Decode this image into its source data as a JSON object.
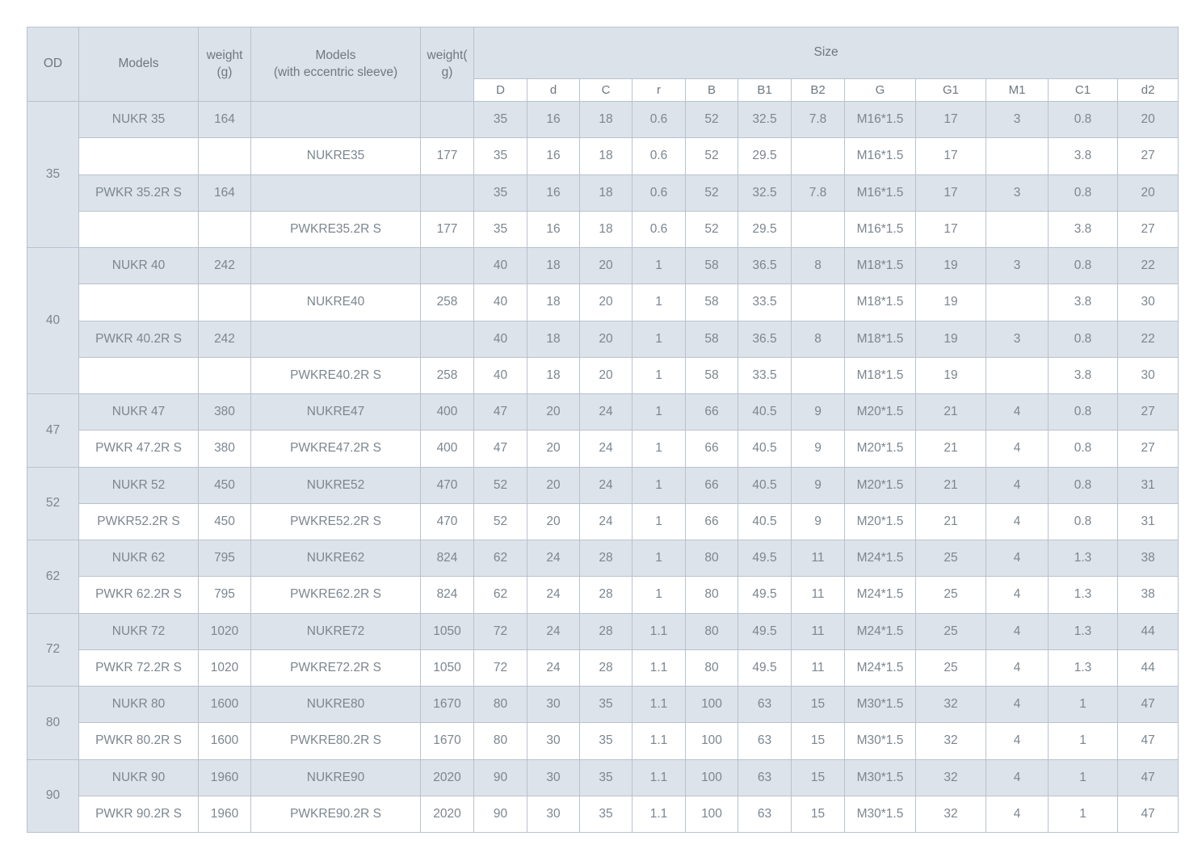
{
  "colors": {
    "shaded_cell": "#dde3ea",
    "white_cell": "#ffffff",
    "border": "#b8c2cd",
    "header_text": "#6e7781",
    "cell_text": "#7b8690"
  },
  "table": {
    "left_columns": [
      "OD",
      "Models",
      "weight\n(g)",
      "Models\n(with eccentric sleeve)",
      "weight(\ng)"
    ],
    "size_header": "Size",
    "size_columns": [
      "D",
      "d",
      "C",
      "r",
      "B",
      "B1",
      "B2",
      "G",
      "G1",
      "M1",
      "C1",
      "d2"
    ],
    "groups": [
      {
        "od": "35",
        "rows": [
          {
            "models": "NUKR 35",
            "weight": "164",
            "models_e": "",
            "weight_e": "",
            "size": [
              "35",
              "16",
              "18",
              "0.6",
              "52",
              "32.5",
              "7.8",
              "M16*1.5",
              "17",
              "3",
              "0.8",
              "20"
            ]
          },
          {
            "models": "",
            "weight": "",
            "models_e": "NUKRE35",
            "weight_e": "177",
            "size": [
              "35",
              "16",
              "18",
              "0.6",
              "52",
              "29.5",
              "",
              "M16*1.5",
              "17",
              "",
              "3.8",
              "27"
            ]
          },
          {
            "models": "PWKR 35.2R S",
            "weight": "164",
            "models_e": "",
            "weight_e": "",
            "size": [
              "35",
              "16",
              "18",
              "0.6",
              "52",
              "32.5",
              "7.8",
              "M16*1.5",
              "17",
              "3",
              "0.8",
              "20"
            ]
          },
          {
            "models": "",
            "weight": "",
            "models_e": "PWKRE35.2R S",
            "weight_e": "177",
            "size": [
              "35",
              "16",
              "18",
              "0.6",
              "52",
              "29.5",
              "",
              "M16*1.5",
              "17",
              "",
              "3.8",
              "27"
            ]
          }
        ]
      },
      {
        "od": "40",
        "rows": [
          {
            "models": "NUKR 40",
            "weight": "242",
            "models_e": "",
            "weight_e": "",
            "size": [
              "40",
              "18",
              "20",
              "1",
              "58",
              "36.5",
              "8",
              "M18*1.5",
              "19",
              "3",
              "0.8",
              "22"
            ]
          },
          {
            "models": "",
            "weight": "",
            "models_e": "NUKRE40",
            "weight_e": "258",
            "size": [
              "40",
              "18",
              "20",
              "1",
              "58",
              "33.5",
              "",
              "M18*1.5",
              "19",
              "",
              "3.8",
              "30"
            ]
          },
          {
            "models": "PWKR 40.2R S",
            "weight": "242",
            "models_e": "",
            "weight_e": "",
            "size": [
              "40",
              "18",
              "20",
              "1",
              "58",
              "36.5",
              "8",
              "M18*1.5",
              "19",
              "3",
              "0.8",
              "22"
            ]
          },
          {
            "models": "",
            "weight": "",
            "models_e": "PWKRE40.2R S",
            "weight_e": "258",
            "size": [
              "40",
              "18",
              "20",
              "1",
              "58",
              "33.5",
              "",
              "M18*1.5",
              "19",
              "",
              "3.8",
              "30"
            ]
          }
        ]
      },
      {
        "od": "47",
        "rows": [
          {
            "models": "NUKR 47",
            "weight": "380",
            "models_e": "NUKRE47",
            "weight_e": "400",
            "size": [
              "47",
              "20",
              "24",
              "1",
              "66",
              "40.5",
              "9",
              "M20*1.5",
              "21",
              "4",
              "0.8",
              "27"
            ]
          },
          {
            "models": "PWKR 47.2R S",
            "weight": "380",
            "models_e": "PWKRE47.2R S",
            "weight_e": "400",
            "size": [
              "47",
              "20",
              "24",
              "1",
              "66",
              "40.5",
              "9",
              "M20*1.5",
              "21",
              "4",
              "0.8",
              "27"
            ]
          }
        ]
      },
      {
        "od": "52",
        "rows": [
          {
            "models": "NUKR 52",
            "weight": "450",
            "models_e": "NUKRE52",
            "weight_e": "470",
            "size": [
              "52",
              "20",
              "24",
              "1",
              "66",
              "40.5",
              "9",
              "M20*1.5",
              "21",
              "4",
              "0.8",
              "31"
            ]
          },
          {
            "models": "PWKR52.2R S",
            "weight": "450",
            "models_e": "PWKRE52.2R S",
            "weight_e": "470",
            "size": [
              "52",
              "20",
              "24",
              "1",
              "66",
              "40.5",
              "9",
              "M20*1.5",
              "21",
              "4",
              "0.8",
              "31"
            ]
          }
        ]
      },
      {
        "od": "62",
        "rows": [
          {
            "models": "NUKR 62",
            "weight": "795",
            "models_e": "NUKRE62",
            "weight_e": "824",
            "size": [
              "62",
              "24",
              "28",
              "1",
              "80",
              "49.5",
              "11",
              "M24*1.5",
              "25",
              "4",
              "1.3",
              "38"
            ]
          },
          {
            "models": "PWKR 62.2R S",
            "weight": "795",
            "models_e": "PWKRE62.2R S",
            "weight_e": "824",
            "size": [
              "62",
              "24",
              "28",
              "1",
              "80",
              "49.5",
              "11",
              "M24*1.5",
              "25",
              "4",
              "1.3",
              "38"
            ]
          }
        ]
      },
      {
        "od": "72",
        "rows": [
          {
            "models": "NUKR 72",
            "weight": "1020",
            "models_e": "NUKRE72",
            "weight_e": "1050",
            "size": [
              "72",
              "24",
              "28",
              "1.1",
              "80",
              "49.5",
              "11",
              "M24*1.5",
              "25",
              "4",
              "1.3",
              "44"
            ]
          },
          {
            "models": "PWKR 72.2R S",
            "weight": "1020",
            "models_e": "PWKRE72.2R S",
            "weight_e": "1050",
            "size": [
              "72",
              "24",
              "28",
              "1.1",
              "80",
              "49.5",
              "11",
              "M24*1.5",
              "25",
              "4",
              "1.3",
              "44"
            ]
          }
        ]
      },
      {
        "od": "80",
        "rows": [
          {
            "models": "NUKR 80",
            "weight": "1600",
            "models_e": "NUKRE80",
            "weight_e": "1670",
            "size": [
              "80",
              "30",
              "35",
              "1.1",
              "100",
              "63",
              "15",
              "M30*1.5",
              "32",
              "4",
              "1",
              "47"
            ]
          },
          {
            "models": "PWKR 80.2R S",
            "weight": "1600",
            "models_e": "PWKRE80.2R S",
            "weight_e": "1670",
            "size": [
              "80",
              "30",
              "35",
              "1.1",
              "100",
              "63",
              "15",
              "M30*1.5",
              "32",
              "4",
              "1",
              "47"
            ]
          }
        ]
      },
      {
        "od": "90",
        "rows": [
          {
            "models": "NUKR 90",
            "weight": "1960",
            "models_e": "NUKRE90",
            "weight_e": "2020",
            "size": [
              "90",
              "30",
              "35",
              "1.1",
              "100",
              "63",
              "15",
              "M30*1.5",
              "32",
              "4",
              "1",
              "47"
            ]
          },
          {
            "models": "PWKR 90.2R S",
            "weight": "1960",
            "models_e": "PWKRE90.2R S",
            "weight_e": "2020",
            "size": [
              "90",
              "30",
              "35",
              "1.1",
              "100",
              "63",
              "15",
              "M30*1.5",
              "32",
              "4",
              "1",
              "47"
            ]
          }
        ]
      }
    ]
  }
}
